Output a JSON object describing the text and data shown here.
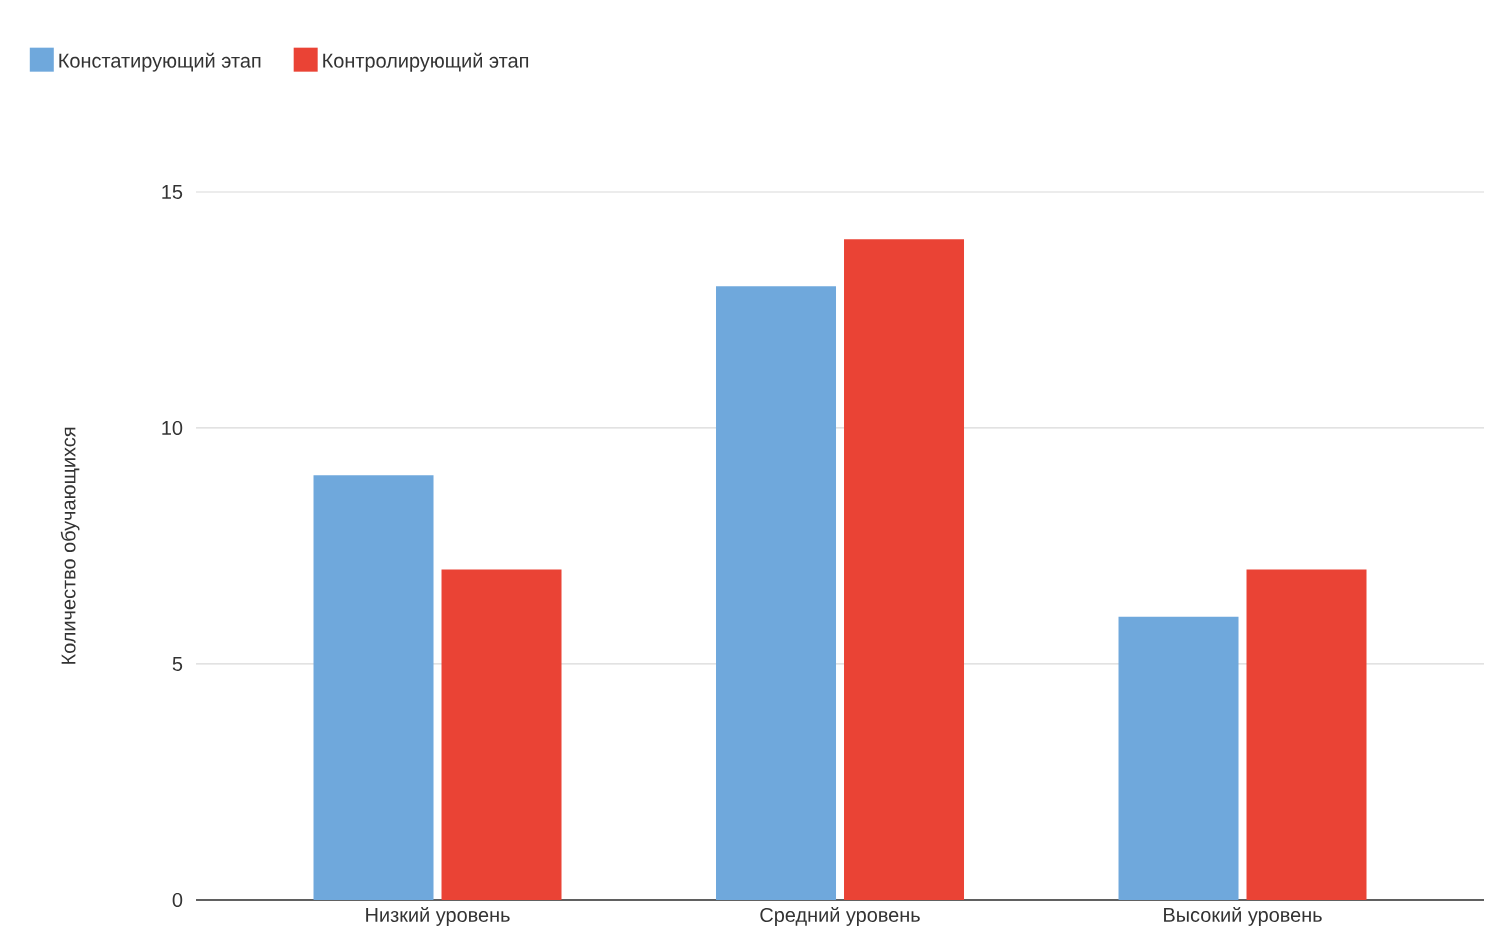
{
  "chart_data": {
    "type": "bar",
    "ylabel": "Количество обучающихся",
    "categories": [
      "Низкий уровень",
      "Средний уровень",
      "Высокий уровень"
    ],
    "series": [
      {
        "name": "Констатирующий этап",
        "color": "#6fa8dc",
        "values": [
          9,
          13,
          6
        ]
      },
      {
        "name": "Контролирующий этап",
        "color": "#ea4335",
        "values": [
          7,
          14,
          7
        ]
      }
    ],
    "ylim": [
      0,
      15
    ],
    "yticks": [
      0,
      5,
      10,
      15
    ],
    "grid": "y",
    "legend": "top left"
  }
}
